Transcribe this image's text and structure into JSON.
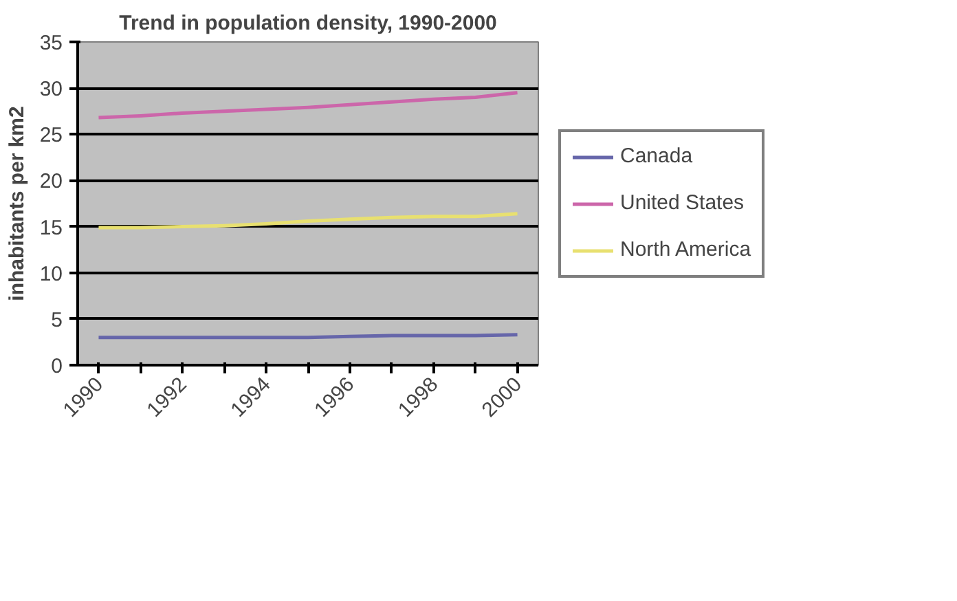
{
  "chart_data": {
    "type": "line",
    "title": "Trend in population density, 1990-2000",
    "ylabel": "inhabitants per km2",
    "categories": [
      "1990",
      null,
      "1992",
      null,
      "1994",
      null,
      "1996",
      null,
      "1998",
      null,
      "2000"
    ],
    "series": [
      {
        "name": "Canada",
        "color": "#6666aa",
        "values": [
          3.0,
          3.0,
          3.0,
          3.0,
          3.0,
          3.0,
          3.1,
          3.2,
          3.2,
          3.2,
          3.3
        ]
      },
      {
        "name": "United States",
        "color": "#cc66aa",
        "values": [
          26.8,
          27.0,
          27.3,
          27.5,
          27.7,
          27.9,
          28.2,
          28.5,
          28.8,
          29.0,
          29.5
        ]
      },
      {
        "name": "North America",
        "color": "#e8e070",
        "values": [
          14.9,
          14.9,
          15.0,
          15.1,
          15.3,
          15.6,
          15.8,
          16.0,
          16.1,
          16.1,
          16.4
        ]
      }
    ],
    "ylim": [
      0,
      35
    ],
    "yticks": [
      0,
      5,
      10,
      15,
      20,
      25,
      30,
      35
    ],
    "grid": "y",
    "legend": "right",
    "marker": "none",
    "line_style": "solid"
  }
}
